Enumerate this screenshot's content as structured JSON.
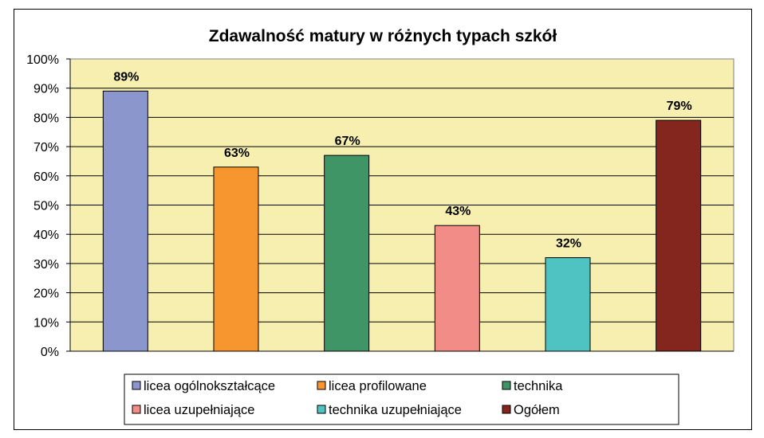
{
  "chart_data": {
    "type": "bar",
    "title": "Zdawalność matury w różnych typach szkół",
    "xlabel": "",
    "ylabel": "",
    "ylim": [
      0,
      100
    ],
    "y_ticks": [
      "0%",
      "10%",
      "20%",
      "30%",
      "40%",
      "50%",
      "60%",
      "70%",
      "80%",
      "90%",
      "100%"
    ],
    "categories": [
      "licea ogólnokształcące",
      "licea profilowane",
      "technika",
      "licea uzupełniające",
      "technika uzupełniające",
      "Ogółem"
    ],
    "values": [
      89,
      63,
      67,
      43,
      32,
      79
    ],
    "data_labels": [
      "89%",
      "63%",
      "67%",
      "43%",
      "32%",
      "79%"
    ],
    "colors": [
      "#8b97cc",
      "#f7962f",
      "#3f9566",
      "#f28c87",
      "#4fc3c2",
      "#84261d"
    ],
    "plot_background": "#f7efb0",
    "grid": true,
    "legend_position": "bottom",
    "legend": [
      "licea ogólnokształcące",
      "licea profilowane",
      "technika",
      "licea uzupełniające",
      "technika uzupełniające",
      "Ogółem"
    ]
  }
}
